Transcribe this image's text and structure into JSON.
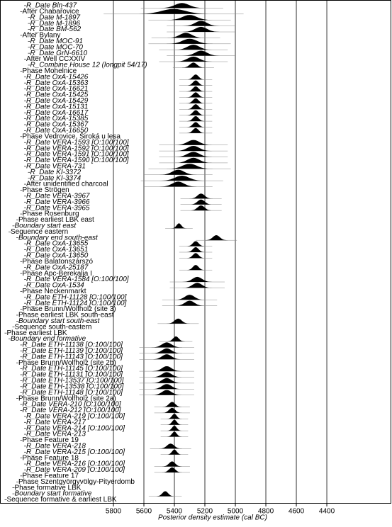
{
  "chart_data": {
    "type": "multiplot",
    "xlabel": "Posterior density estimate (cal BC)",
    "xlim": [
      6544,
      3977
    ],
    "xticks": [
      5800,
      5600,
      5400,
      5200,
      5000,
      4800,
      4600,
      4400
    ],
    "grid": true,
    "color": "#000000",
    "rows": [
      {
        "label": "R_Date Bln-437",
        "level": 6,
        "range": [
          5500,
          5200
        ]
      },
      {
        "label": "After Chabařovice",
        "level": 5,
        "range": [
          5660,
          5150
        ]
      },
      {
        "label": "R_Date M-1897",
        "level": 7,
        "range": [
          5450,
          5150
        ]
      },
      {
        "label": "R_Date M-1896",
        "level": 7,
        "range": [
          5350,
          5100
        ]
      },
      {
        "label": "R_Date BM-562",
        "level": 7,
        "range": [
          5350,
          5100
        ]
      },
      {
        "label": "After Bylany",
        "level": 5,
        "range": [
          5450,
          5200
        ]
      },
      {
        "label": "R_Date MOC-91",
        "level": 7,
        "range": [
          5450,
          5150
        ]
      },
      {
        "label": "R_Date MOC-70",
        "level": 7,
        "range": [
          5400,
          5150
        ]
      },
      {
        "label": "R_Date GrN-6610",
        "level": 7,
        "range": [
          5350,
          5100
        ]
      },
      {
        "label": "After Well CCXXIV",
        "level": 6,
        "range": [
          5400,
          5150
        ]
      },
      {
        "label": "R_Combine House 12 (longpit 54/17)",
        "level": 7,
        "range": [
          5350,
          5200
        ]
      },
      {
        "label": "Phase Mohelnice",
        "level": 5,
        "range": null
      },
      {
        "label": "R_Date OxA-15426",
        "level": 6,
        "range": [
          5320,
          5200
        ]
      },
      {
        "label": "R_Date OxA-15363",
        "level": 6,
        "range": [
          5320,
          5200
        ]
      },
      {
        "label": "R_Date OxA-16621",
        "level": 6,
        "range": [
          5320,
          5200
        ]
      },
      {
        "label": "R_Date OxA-15425",
        "level": 6,
        "range": [
          5320,
          5200
        ]
      },
      {
        "label": "R_Date OxA-15429",
        "level": 6,
        "range": [
          5320,
          5200
        ]
      },
      {
        "label": "R_Date OxA-15131",
        "level": 6,
        "range": [
          5320,
          5200
        ]
      },
      {
        "label": "R_Date OxA-16617",
        "level": 6,
        "range": [
          5320,
          5200
        ]
      },
      {
        "label": "R_Date OxA-15385",
        "level": 6,
        "range": [
          5320,
          5200
        ]
      },
      {
        "label": "R_Date OxA-15367",
        "level": 6,
        "range": [
          5320,
          5200
        ]
      },
      {
        "label": "R_Date OxA-16650",
        "level": 6,
        "range": [
          5320,
          5200
        ]
      },
      {
        "label": "Phase Vedrovice, Široká u lesa",
        "level": 5,
        "range": null
      },
      {
        "label": "R_Date VERA-1593 [O:100/100]",
        "level": 6,
        "range": [
          5400,
          5150
        ]
      },
      {
        "label": "R_Date VERA-1592 [O:100/100]",
        "level": 6,
        "range": [
          5400,
          5150
        ]
      },
      {
        "label": "R_Date VERA-1591 [O:100/100]",
        "level": 6,
        "range": [
          5400,
          5150
        ]
      },
      {
        "label": "R_Date VERA-1590 [O:100/100]",
        "level": 6,
        "range": [
          5400,
          5150
        ]
      },
      {
        "label": "R_Date VERA-731",
        "level": 6,
        "range": [
          5450,
          5150
        ]
      },
      {
        "label": "R_Date KI-3372",
        "level": 7,
        "range": [
          5500,
          5250
        ]
      },
      {
        "label": "R_Date KI-3374",
        "level": 7,
        "range": [
          5500,
          5200
        ]
      },
      {
        "label": "After unidentified charcoal",
        "level": 6,
        "range": [
          5500,
          5250
        ]
      },
      {
        "label": "Phase Strögen",
        "level": 5,
        "range": null
      },
      {
        "label": "R_Date VERA-3967",
        "level": 6,
        "range": [
          5300,
          5150
        ]
      },
      {
        "label": "R_Date VERA-3966",
        "level": 6,
        "range": [
          5300,
          5150
        ]
      },
      {
        "label": "R_Date VERA-3965",
        "level": 6,
        "range": [
          5300,
          5150
        ]
      },
      {
        "label": "Phase Rosenburg",
        "level": 5,
        "range": null
      },
      {
        "label": "Phase earliest LBK east",
        "level": 4,
        "range": null
      },
      {
        "label": "Boundary start east",
        "level": 3,
        "range": [
          5420,
          5320
        ]
      },
      {
        "label": "Sequence eastern",
        "level": 2,
        "range": null
      },
      {
        "label": "Boundary end south-east",
        "level": 4,
        "range": [
          5200,
          5050
        ]
      },
      {
        "label": "R_Date OxA-13655",
        "level": 6,
        "range": [
          5320,
          5200
        ]
      },
      {
        "label": "R_Date OxA-13651",
        "level": 6,
        "range": [
          5320,
          5200
        ]
      },
      {
        "label": "R_Date OxA-13650",
        "level": 6,
        "range": [
          5320,
          5200
        ]
      },
      {
        "label": "Phase Balatonszárszó",
        "level": 5,
        "range": null
      },
      {
        "label": "R_Date OxA-25187",
        "level": 6,
        "range": [
          5320,
          5200
        ]
      },
      {
        "label": "Phase Apc-Berekalja I",
        "level": 5,
        "range": null
      },
      {
        "label": "R_Date VERA-1584 [O:100/100]",
        "level": 6,
        "range": [
          5350,
          5150
        ]
      },
      {
        "label": "R_Date OxA-1534",
        "level": 6,
        "range": [
          5350,
          5150
        ]
      },
      {
        "label": "Phase Neckenmarkt",
        "level": 5,
        "range": null
      },
      {
        "label": "R_Date ETH-11128 [O:100/100]",
        "level": 6,
        "range": [
          5400,
          5200
        ]
      },
      {
        "label": "R_Date ETH-11124 [O:100/100]",
        "level": 6,
        "range": [
          5400,
          5200
        ]
      },
      {
        "label": "Phase Brunn/Wolfholz (site 3)",
        "level": 5,
        "range": null
      },
      {
        "label": "Phase earliest LBK south-east",
        "level": 4,
        "range": null
      },
      {
        "label": "Boundary start south-east",
        "level": 4,
        "range": [
          5450,
          5300
        ]
      },
      {
        "label": "Sequence south-eastern",
        "level": 3,
        "range": null
      },
      {
        "label": "Phase earliest LBK",
        "level": 1,
        "range": null
      },
      {
        "label": "Boundary end formative",
        "level": 2,
        "range": [
          5450,
          5330
        ]
      },
      {
        "label": "R_Date ETH-11138 [O:100/100]",
        "level": 5,
        "range": [
          5550,
          5350
        ]
      },
      {
        "label": "R_Date ETH-11139 [O:100/100]",
        "level": 5,
        "range": [
          5550,
          5350
        ]
      },
      {
        "label": "R_Date ETH-11143 [O:100/100]",
        "level": 5,
        "range": [
          5550,
          5350
        ]
      },
      {
        "label": "Phase Brunn/Wolfholz (site 2b)",
        "level": 4,
        "range": null
      },
      {
        "label": "R_Date ETH-11145 [O:100/100]",
        "level": 5,
        "range": [
          5550,
          5350
        ]
      },
      {
        "label": "R_Date ETH-11131 [O:100/100]",
        "level": 5,
        "range": [
          5550,
          5350
        ]
      },
      {
        "label": "R_Date ETH-13537 [O:100/100]",
        "level": 5,
        "range": [
          5550,
          5350
        ]
      },
      {
        "label": "R_Date ETH-13538 [O:100/100]",
        "level": 5,
        "range": [
          5550,
          5350
        ]
      },
      {
        "label": "R_Date ETH-11148 [O:100/100]",
        "level": 5,
        "range": [
          5550,
          5350
        ]
      },
      {
        "label": "Phase Brunn/Wolfholz (site 2a)",
        "level": 4,
        "range": null
      },
      {
        "label": "R_Date VERA-210 [O:100/100]",
        "level": 5,
        "range": [
          5480,
          5350
        ]
      },
      {
        "label": "R_Date VERA-212 [O:100/100]",
        "level": 5,
        "range": [
          5480,
          5350
        ]
      },
      {
        "label": "R_Date VERA-219 [O:100/100]",
        "level": 6,
        "range": [
          5450,
          5350
        ]
      },
      {
        "label": "R_Date VERA-217",
        "level": 6,
        "range": [
          5450,
          5350
        ]
      },
      {
        "label": "R_Date VERA-214 [O:100/100]",
        "level": 6,
        "range": [
          5450,
          5350
        ]
      },
      {
        "label": "R_Date VERA-213",
        "level": 6,
        "range": [
          5450,
          5350
        ]
      },
      {
        "label": "Phase Feature 19",
        "level": 5,
        "range": null
      },
      {
        "label": "R_Date VERA-218",
        "level": 6,
        "range": [
          5500,
          5350
        ]
      },
      {
        "label": "R_Date VERA-215 [O:100/100]",
        "level": 6,
        "range": [
          5450,
          5350
        ]
      },
      {
        "label": "Phase Feature 18",
        "level": 5,
        "range": null
      },
      {
        "label": "R_Date VERA-216 [O:100/100]",
        "level": 6,
        "range": [
          5480,
          5350
        ]
      },
      {
        "label": "R_Date VERA-209 [O:100/100]",
        "level": 6,
        "range": [
          5480,
          5350
        ]
      },
      {
        "label": "Phase Feature 17",
        "level": 5,
        "range": null
      },
      {
        "label": "Phase Szentgyörgyvölgy-Pityerdomb",
        "level": 4,
        "range": null
      },
      {
        "label": "Phase formative LBK",
        "level": 3,
        "range": null
      },
      {
        "label": "Boundary start formative",
        "level": 3,
        "range": [
          5520,
          5400
        ]
      },
      {
        "label": "Sequence formative & earliest LBK",
        "level": 1,
        "range": null
      }
    ]
  }
}
